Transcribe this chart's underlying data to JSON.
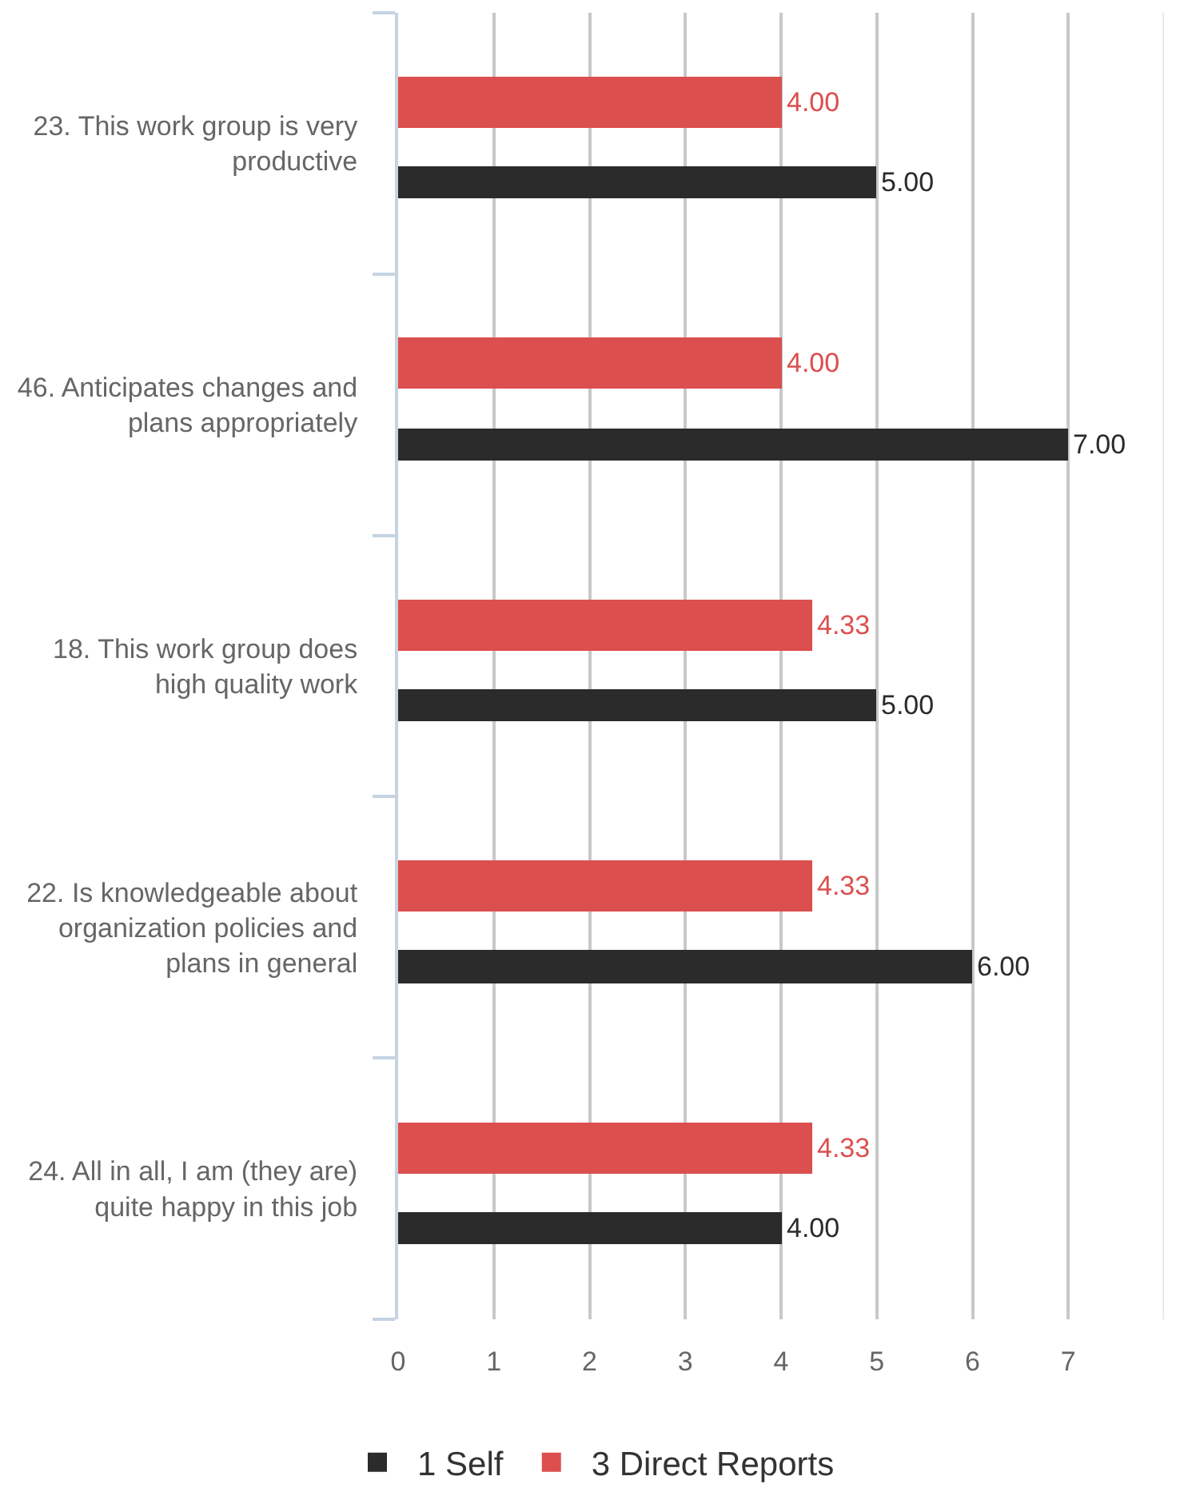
{
  "chart_data": {
    "type": "bar",
    "orientation": "horizontal",
    "categories": [
      "23. This work group is very productive",
      "46. Anticipates changes and plans appropriately",
      "18. This work group does high quality work",
      "22. Is knowledgeable about organization policies and plans in general",
      "24. All in all, I am (they are) quite happy in this job"
    ],
    "series": [
      {
        "name": "1 Self",
        "color": "#2b2b2b",
        "values": [
          5,
          7,
          5,
          6,
          4
        ],
        "value_labels": [
          "5.00",
          "7.00",
          "5.00",
          "6.00",
          "4.00"
        ]
      },
      {
        "name": "3 Direct Reports",
        "color": "#dc4f4f",
        "values": [
          4,
          4,
          4.33,
          4.33,
          4.33
        ],
        "value_labels": [
          "4.00",
          "4.00",
          "4.33",
          "4.33",
          "4.33"
        ]
      }
    ],
    "xlim": [
      0,
      8
    ],
    "xticks": [
      0,
      1,
      2,
      3,
      4,
      5,
      6,
      7
    ],
    "grid": "x",
    "legend": "bottom"
  }
}
